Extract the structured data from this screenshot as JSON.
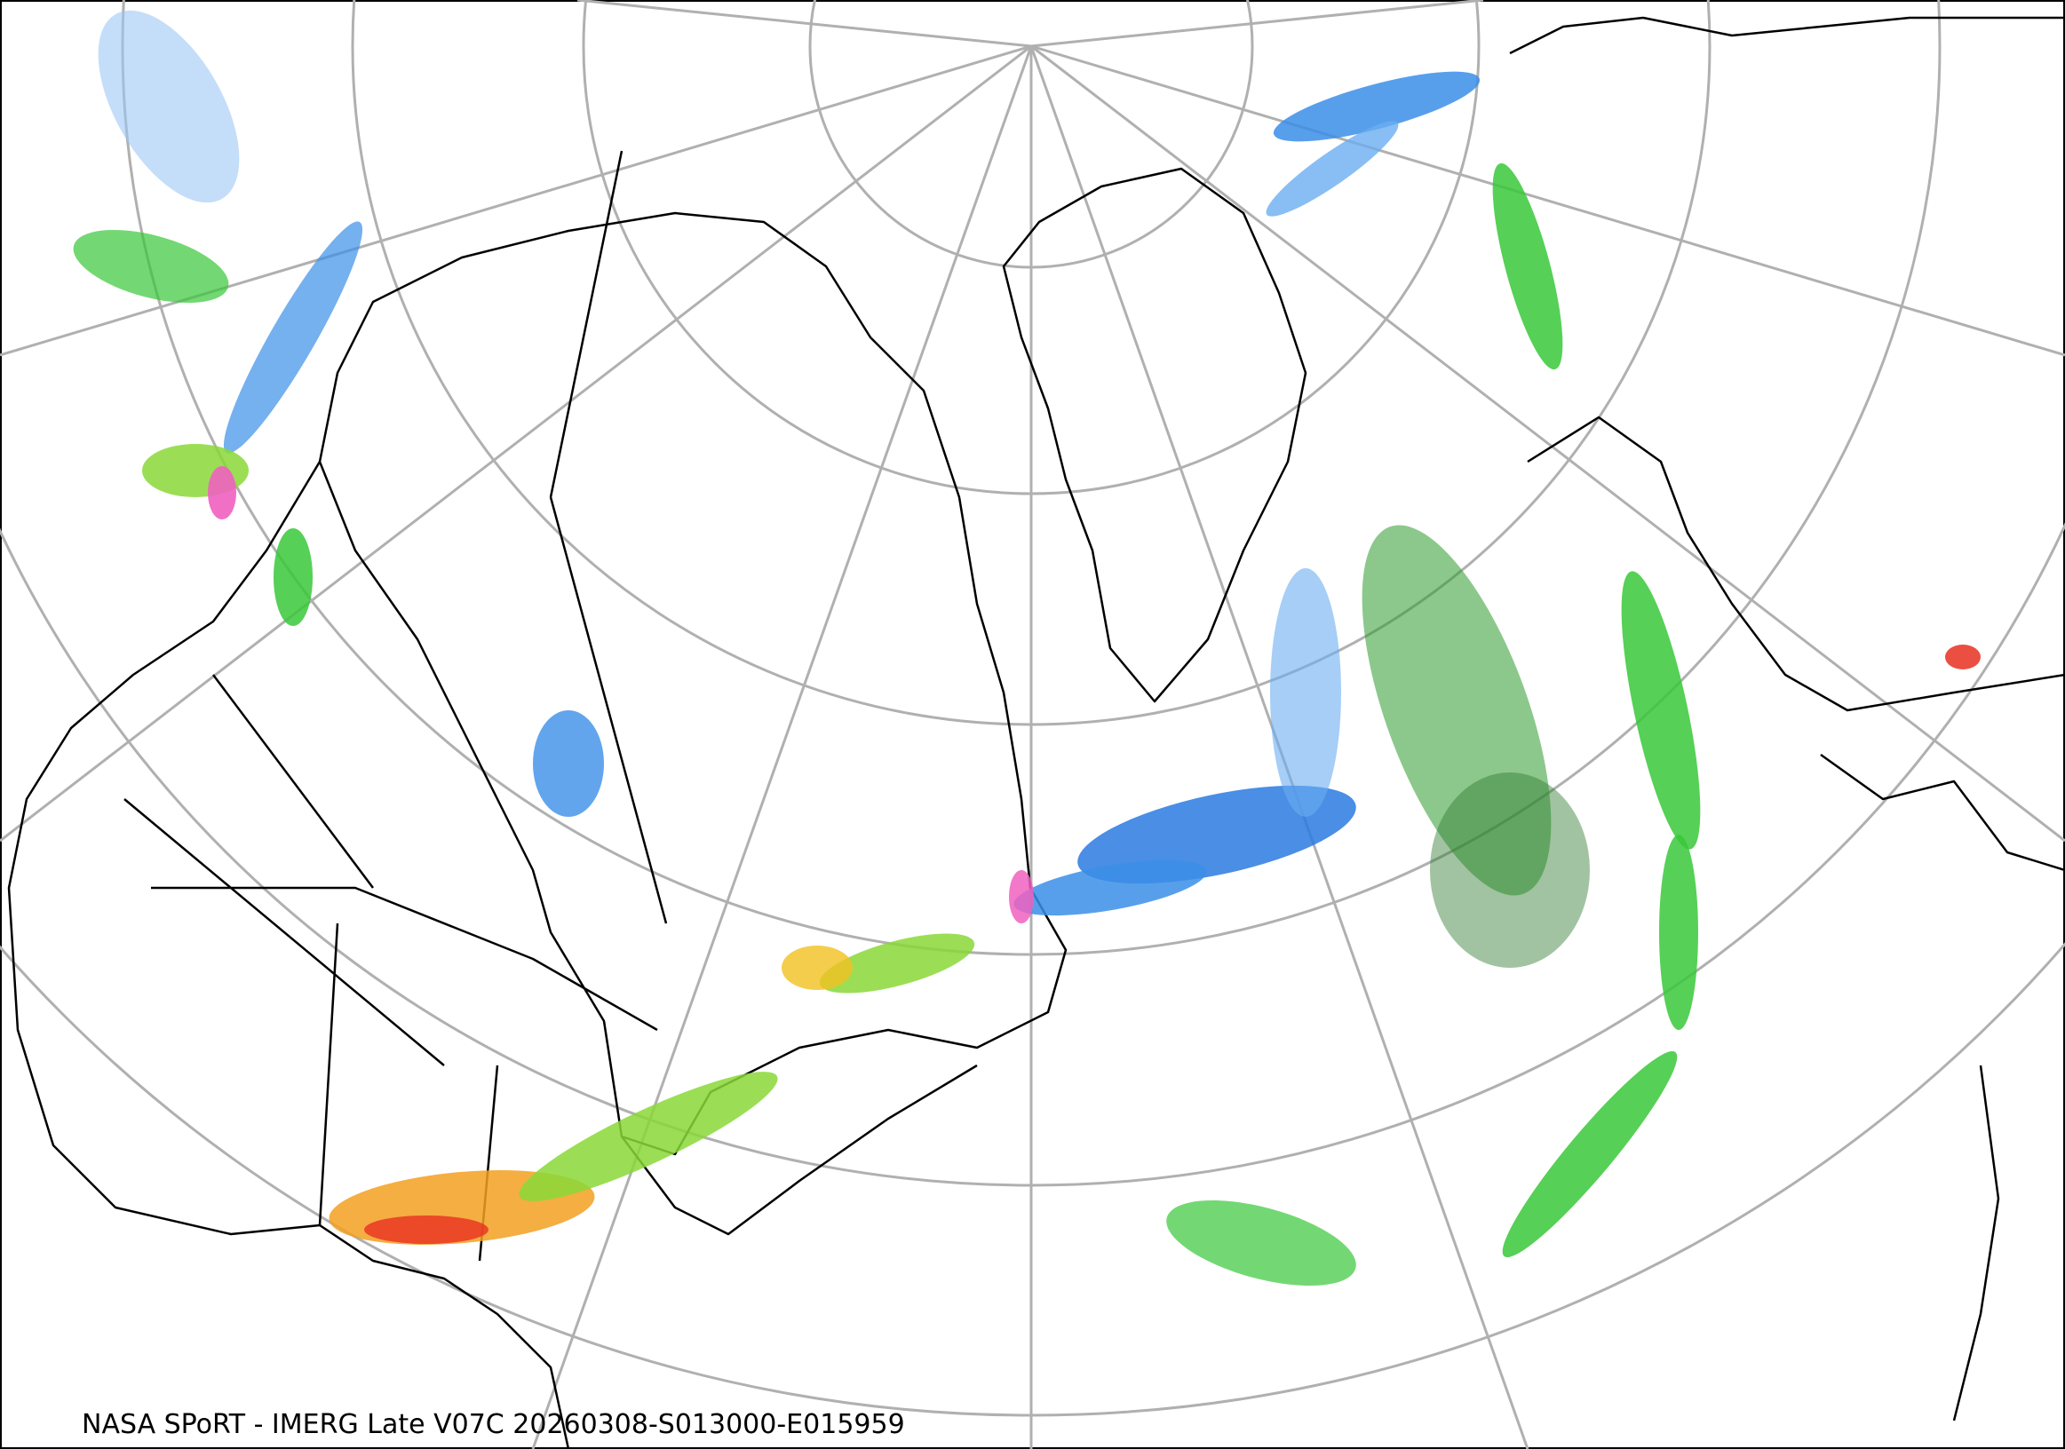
{
  "caption": "NASA SPoRT - IMERG Late V07C 20260308-S013000-E015959"
}
